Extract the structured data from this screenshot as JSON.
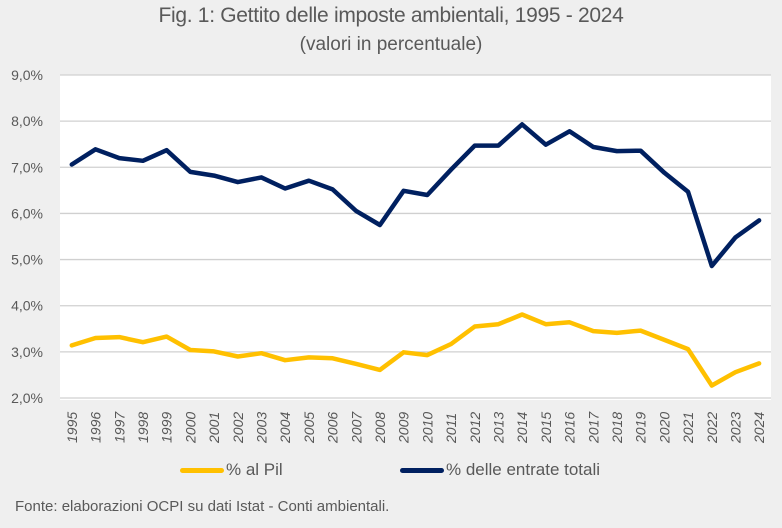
{
  "chart_data": {
    "type": "line",
    "title": "Fig. 1: Gettito delle imposte ambientali, 1995 - 2024",
    "subtitle": "(valori in percentuale)",
    "xlabel": "",
    "ylabel": "",
    "x": [
      "1995",
      "1996",
      "1997",
      "1998",
      "1999",
      "2000",
      "2001",
      "2002",
      "2003",
      "2004",
      "2005",
      "2006",
      "2007",
      "2008",
      "2009",
      "2010",
      "2011",
      "2012",
      "2013",
      "2014",
      "2015",
      "2016",
      "2017",
      "2018",
      "2019",
      "2020",
      "2021",
      "2022",
      "2023",
      "2024"
    ],
    "ylim": [
      2.0,
      9.0
    ],
    "yticks": [
      2.0,
      3.0,
      4.0,
      5.0,
      6.0,
      7.0,
      8.0,
      9.0
    ],
    "ytick_labels": [
      "2,0%",
      "3,0%",
      "4,0%",
      "5,0%",
      "6,0%",
      "7,0%",
      "8,0%",
      "9,0%"
    ],
    "grid": true,
    "legend_position": "bottom",
    "series": [
      {
        "name": "% al Pil",
        "color": "#ffc000",
        "values": [
          3.14,
          3.3,
          3.32,
          3.21,
          3.33,
          3.04,
          3.01,
          2.9,
          2.97,
          2.82,
          2.88,
          2.86,
          2.74,
          2.61,
          2.99,
          2.93,
          3.17,
          3.55,
          3.6,
          3.81,
          3.6,
          3.64,
          3.45,
          3.41,
          3.46,
          3.26,
          3.06,
          2.27,
          2.56,
          2.75
        ]
      },
      {
        "name": "% delle entrate totali",
        "color": "#002060",
        "values": [
          7.06,
          7.39,
          7.2,
          7.14,
          7.37,
          6.9,
          6.82,
          6.68,
          6.78,
          6.54,
          6.71,
          6.52,
          6.05,
          5.75,
          6.49,
          6.4,
          6.95,
          7.47,
          7.47,
          7.93,
          7.49,
          7.78,
          7.44,
          7.35,
          7.36,
          6.88,
          6.47,
          4.86,
          5.48,
          5.85
        ]
      }
    ],
    "source": "Fonte: elaborazioni OCPI su dati Istat - Conti ambientali."
  }
}
